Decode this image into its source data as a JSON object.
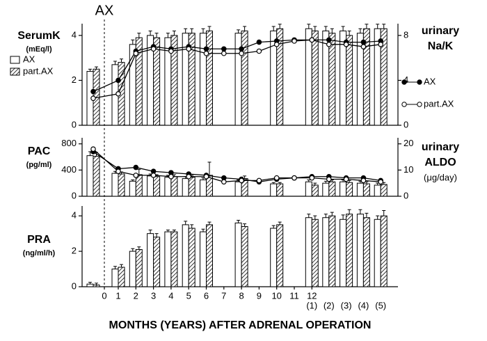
{
  "annotation": "AX",
  "x_label": "MONTHS (YEARS) AFTER ADRENAL OPERATION",
  "chart_data": [
    {
      "type": "bar",
      "ylabel": [
        "SerumK",
        "(mEq/l)"
      ],
      "y2label": [
        "urinary",
        "Na/K"
      ],
      "ylim": [
        0,
        4.4
      ],
      "yticks": [
        0,
        2,
        4
      ],
      "y2lim": [
        0,
        8.8
      ],
      "y2ticks": [
        0,
        4,
        8
      ],
      "series": [
        {
          "name": "AX",
          "color": "#ffffff",
          "values": [
            2.4,
            2.7,
            3.6,
            4.0,
            3.9,
            4.1,
            4.1,
            null,
            4.1,
            null,
            4.2,
            null,
            4.3,
            4.2,
            4.2,
            4.1,
            4.3
          ],
          "errors": [
            0.1,
            0.15,
            0.2,
            0.2,
            0.2,
            0.2,
            0.2,
            null,
            0.15,
            null,
            0.2,
            null,
            0.2,
            0.2,
            0.2,
            0.2,
            0.2
          ]
        },
        {
          "name": "part.AX",
          "color": "#000000",
          "hatch": true,
          "values": [
            2.5,
            2.8,
            3.9,
            3.9,
            4.0,
            4.1,
            4.2,
            null,
            4.2,
            null,
            4.3,
            null,
            4.2,
            4.1,
            4.0,
            4.3,
            4.3
          ],
          "errors": [
            0.1,
            0.15,
            0.2,
            0.2,
            0.2,
            0.2,
            0.2,
            null,
            0.2,
            null,
            0.2,
            null,
            0.2,
            0.2,
            0.2,
            0.2,
            0.2
          ]
        },
        {
          "name": "AX",
          "type": "line",
          "axis": "y2",
          "color": "#000000",
          "marker": "filled",
          "values": [
            3.0,
            4.0,
            6.6,
            7.0,
            6.8,
            7.0,
            6.8,
            6.8,
            6.8,
            7.4,
            7.5,
            7.6,
            7.6,
            7.6,
            7.4,
            7.4,
            7.5
          ]
        },
        {
          "name": "part.AX",
          "type": "line",
          "axis": "y2",
          "color": "#000000",
          "marker": "open",
          "values": [
            2.4,
            2.8,
            6.4,
            6.8,
            6.6,
            6.8,
            6.4,
            6.4,
            6.4,
            6.6,
            7.2,
            7.5,
            7.6,
            7.2,
            7.2,
            7.0,
            7.2
          ]
        }
      ]
    },
    {
      "type": "bar",
      "ylabel": [
        "PAC",
        "(pg/ml)"
      ],
      "y2label": [
        "urinary",
        "ALDO",
        "(μg/day)"
      ],
      "ylim": [
        0,
        850
      ],
      "yticks": [
        0,
        400,
        800
      ],
      "y2lim": [
        0,
        21.25
      ],
      "y2ticks": [
        0,
        10,
        20
      ],
      "series": [
        {
          "color": "#ffffff",
          "values": [
            620,
            350,
            230,
            310,
            290,
            270,
            250,
            null,
            220,
            null,
            190,
            null,
            220,
            200,
            220,
            200,
            170
          ],
          "errors": [
            60,
            30,
            20,
            30,
            30,
            30,
            30,
            null,
            30,
            null,
            20,
            null,
            30,
            30,
            30,
            30,
            30
          ]
        },
        {
          "color": "#000000",
          "hatch": true,
          "values": [
            610,
            340,
            330,
            300,
            300,
            290,
            320,
            null,
            270,
            null,
            190,
            null,
            170,
            220,
            210,
            190,
            180
          ],
          "errors": [
            60,
            30,
            80,
            30,
            30,
            30,
            200,
            null,
            40,
            null,
            20,
            null,
            30,
            30,
            30,
            30,
            30
          ]
        },
        {
          "type": "line",
          "axis": "y2",
          "color": "#000000",
          "marker": "filled",
          "values": [
            17,
            10.5,
            11,
            9.5,
            9,
            8.5,
            8,
            7,
            6.5,
            5.5,
            6.5,
            7,
            7.5,
            7.5,
            7,
            7,
            6
          ]
        },
        {
          "type": "line",
          "axis": "y2",
          "color": "#000000",
          "marker": "open",
          "values": [
            18,
            9.5,
            8,
            8,
            7.5,
            7.5,
            7.5,
            5.5,
            6,
            6,
            7,
            7,
            7,
            6.5,
            6.5,
            6,
            5.5
          ]
        }
      ]
    },
    {
      "type": "bar",
      "ylabel": [
        "PRA",
        "(ng/ml/h)"
      ],
      "ylim": [
        0,
        4.4
      ],
      "yticks": [
        0,
        2,
        4
      ],
      "categories": [
        "0",
        "1",
        "2",
        "3",
        "4",
        "5",
        "6",
        "7",
        "8",
        "9",
        "10",
        "11",
        "12",
        null,
        null,
        null,
        null
      ],
      "year_labels": [
        null,
        null,
        null,
        null,
        null,
        null,
        null,
        null,
        null,
        null,
        null,
        null,
        "(1)",
        "(2)",
        "(3)",
        "(4)",
        "(5)"
      ],
      "series": [
        {
          "color": "#ffffff",
          "values": [
            0.15,
            1.0,
            2.0,
            3.0,
            3.1,
            3.5,
            3.1,
            null,
            3.6,
            null,
            3.3,
            null,
            3.9,
            3.9,
            3.8,
            4.1,
            3.8
          ],
          "errors": [
            0.1,
            0.15,
            0.15,
            0.2,
            0.1,
            0.2,
            0.15,
            null,
            0.15,
            null,
            0.15,
            null,
            0.2,
            0.2,
            0.25,
            0.25,
            0.2
          ]
        },
        {
          "color": "#000000",
          "hatch": true,
          "values": [
            0.1,
            1.1,
            2.1,
            2.8,
            3.1,
            3.3,
            3.5,
            null,
            3.4,
            null,
            3.5,
            null,
            3.8,
            4.0,
            4.1,
            3.9,
            4.0
          ],
          "errors": [
            0.1,
            0.15,
            0.15,
            0.2,
            0.1,
            0.2,
            0.15,
            null,
            0.15,
            null,
            0.15,
            null,
            0.2,
            0.2,
            0.25,
            0.25,
            0.3
          ]
        }
      ]
    }
  ]
}
